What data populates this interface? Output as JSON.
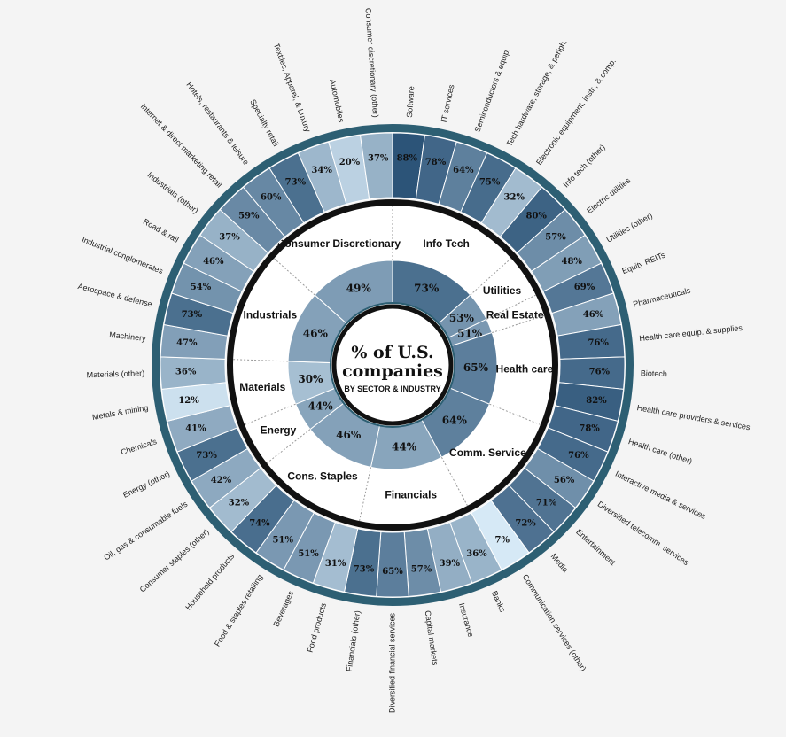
{
  "chart_data": {
    "type": "sunburst",
    "title": "% of U.S. companies",
    "subtitle": "BY SECTOR & INDUSTRY",
    "color_scale": [
      "#d6e9f6",
      "#2c5478"
    ],
    "sectors": [
      {
        "name": "Info Tech",
        "value": 73,
        "value_label": "73%",
        "categories": [
          "Software",
          "IT services",
          "Semiconductors & equip.",
          "Tech hardware, storage, & periph.",
          "Electronic equipment, instr., & comp.",
          "Info tech (other)"
        ],
        "values": [
          88,
          78,
          64,
          75,
          32,
          80
        ],
        "value_labels": [
          "88%",
          "78%",
          "64%",
          "75%",
          "32%",
          "80%"
        ]
      },
      {
        "name": "Utilities",
        "value": 53,
        "value_label": "53%",
        "categories": [
          "Electric utilities",
          "Utilities (other)"
        ],
        "values": [
          57,
          48
        ],
        "value_labels": [
          "57%",
          "48%"
        ]
      },
      {
        "name": "Real Estate",
        "value": 51,
        "value_label": "51%",
        "categories": [
          "Equity REITs"
        ],
        "values": [
          69
        ],
        "value_labels": [
          "69%"
        ]
      },
      {
        "name": "Health care",
        "value": 65,
        "value_label": "65%",
        "categories": [
          "Pharmaceuticals",
          "Health care equip. & supplies",
          "Biotech",
          "Health care providers & services",
          "Health care (other)"
        ],
        "values": [
          46,
          76,
          76,
          82,
          78
        ],
        "value_labels": [
          "46%",
          "76%",
          "76%",
          "82%",
          "78%"
        ]
      },
      {
        "name": "Comm. Services",
        "value": 64,
        "value_label": "64%",
        "categories": [
          "Interactive media & services",
          "Diversified telecomm. services",
          "Entertainment",
          "Media",
          "Communication services (other)"
        ],
        "values": [
          76,
          56,
          71,
          72,
          7
        ],
        "value_labels": [
          "76%",
          "56%",
          "71%",
          "72%",
          "7%"
        ]
      },
      {
        "name": "Financials",
        "value": 44,
        "value_label": "44%",
        "categories": [
          "Banks",
          "Insurance",
          "Capital markets",
          "Diversified financial services",
          "Financials (other)"
        ],
        "values": [
          36,
          39,
          57,
          65,
          73
        ],
        "value_labels": [
          "36%",
          "39%",
          "57%",
          "65%",
          "73%"
        ]
      },
      {
        "name": "Cons. Staples",
        "value": 46,
        "value_label": "46%",
        "categories": [
          "Food products",
          "Beverages",
          "Food & staples retailing",
          "Household products",
          "Consumer staples (other)"
        ],
        "values": [
          31,
          51,
          51,
          74,
          32
        ],
        "value_labels": [
          "31%",
          "51%",
          "51%",
          "74%",
          "32%"
        ]
      },
      {
        "name": "Energy",
        "value": 44,
        "value_label": "44%",
        "categories": [
          "Oil, gas & consumable fuels",
          "Energy (other)"
        ],
        "values": [
          42,
          73
        ],
        "value_labels": [
          "42%",
          "73%"
        ]
      },
      {
        "name": "Materials",
        "value": 30,
        "value_label": "30%",
        "categories": [
          "Chemicals",
          "Metals & mining",
          "Materials (other)"
        ],
        "values": [
          41,
          12,
          36
        ],
        "value_labels": [
          "41%",
          "12%",
          "36%"
        ]
      },
      {
        "name": "Industrials",
        "value": 46,
        "value_label": "46%",
        "categories": [
          "Machinery",
          "Aerospace & defense",
          "Industrial conglomerates",
          "Road & rail",
          "Industrials (other)"
        ],
        "values": [
          47,
          73,
          54,
          46,
          37
        ],
        "value_labels": [
          "47%",
          "73%",
          "54%",
          "46%",
          "37%"
        ]
      },
      {
        "name": "Consumer Discretionary",
        "value": 49,
        "value_label": "49%",
        "categories": [
          "Internet & direct marketing retail",
          "Hotels, restaurants & leisure",
          "Specialty retail",
          "Textiles, Apparel, & Luxury",
          "Automobiles",
          "Consumer discretionary (other)"
        ],
        "values": [
          59,
          60,
          73,
          34,
          20,
          37
        ],
        "value_labels": [
          "59%",
          "60%",
          "73%",
          "34%",
          "20%",
          "37%"
        ]
      }
    ]
  }
}
